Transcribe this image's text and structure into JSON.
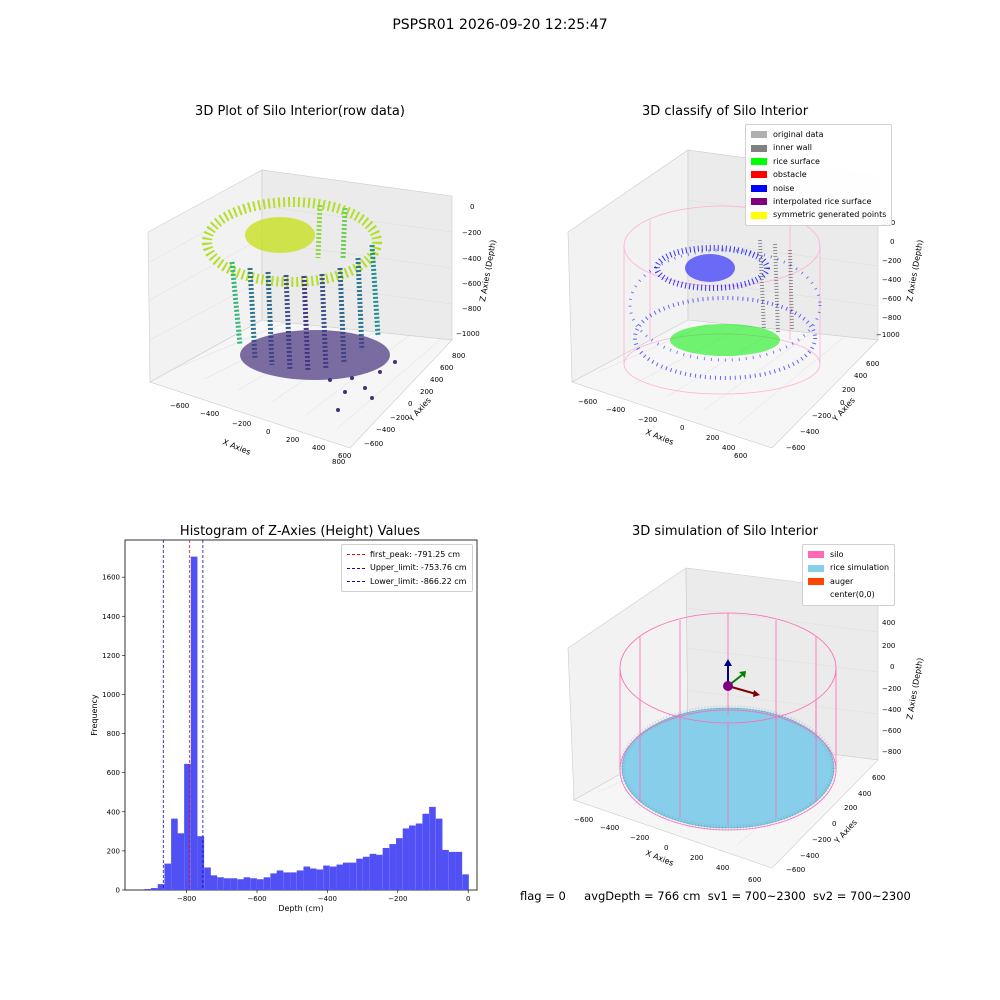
{
  "suptitle": "PSPSR01 2026-09-20 12:25:47",
  "colors": {
    "hist_bar": "#5050f5",
    "first_peak": "#e01010",
    "limits": "#1010a0",
    "silo_wire": "#ff69b4",
    "rice": "#87ceeb"
  },
  "panels": {
    "raw": {
      "title": "3D Plot of Silo Interior(row data)",
      "xlabel": "X Axies",
      "ylabel": "Y Axies",
      "zlabel": "Z Axies (Depth)",
      "xticks": [
        "−600",
        "−400",
        "−200",
        "0",
        "200",
        "400",
        "600",
        "800"
      ],
      "yticks": [
        "800",
        "600",
        "400",
        "200",
        "0",
        "−200",
        "−400",
        "−600"
      ],
      "zticks": [
        "0",
        "−200",
        "−400",
        "−600",
        "−800",
        "−1000"
      ],
      "colormap": "viridis"
    },
    "classify": {
      "title": "3D classify of Silo Interior",
      "xlabel": "X Axies",
      "ylabel": "Y Axies",
      "zlabel": "Z Axies (Depth)",
      "xticks": [
        "−600",
        "−400",
        "−200",
        "0",
        "200",
        "400",
        "600"
      ],
      "yticks": [
        "600",
        "400",
        "200",
        "0",
        "−200",
        "−400",
        "−600"
      ],
      "zticks": [
        "200",
        "0",
        "−200",
        "−400",
        "−600",
        "−800",
        "−1000"
      ],
      "legend": [
        {
          "label": "original data",
          "color": "#b0b0b0"
        },
        {
          "label": "inner wall",
          "color": "#808080"
        },
        {
          "label": "rice surface",
          "color": "#00ff00"
        },
        {
          "label": "obstacle",
          "color": "#ff0000"
        },
        {
          "label": "noise",
          "color": "#0000ff"
        },
        {
          "label": "interpolated rice surface",
          "color": "#800080"
        },
        {
          "label": "symmetric generated points",
          "color": "#ffff00"
        }
      ]
    },
    "simulation": {
      "title": "3D simulation of Silo Interior",
      "xlabel": "X Axies",
      "ylabel": "Y Axies",
      "zlabel": "Z Axies (Depth)",
      "xticks": [
        "−600",
        "−400",
        "−200",
        "0",
        "200",
        "400",
        "600"
      ],
      "yticks": [
        "600",
        "400",
        "200",
        "0",
        "−200",
        "−400",
        "−600"
      ],
      "zticks": [
        "400",
        "200",
        "0",
        "−200",
        "−400",
        "−600",
        "−800"
      ],
      "legend": [
        {
          "label": "silo",
          "color": "#ff69b4"
        },
        {
          "label": "rice simulation",
          "color": "#87ceeb"
        },
        {
          "label": "auger",
          "color": "#ff4500"
        },
        {
          "label": "center(0,0)",
          "color": "#ffffff"
        }
      ]
    }
  },
  "footer": {
    "flag": "flag = 0",
    "avg_depth": "avgDepth = 766 cm",
    "sv1": "sv1 = 700~2300",
    "sv2": "sv2 = 700~2300"
  },
  "chart_data": [
    {
      "type": "bar",
      "title": "Histogram of Z-Axies (Height) Values",
      "xlabel": "Depth (cm)",
      "ylabel": "Frequency",
      "xlim": [
        -975,
        25
      ],
      "ylim": [
        0,
        1790
      ],
      "xticks": [
        -800,
        -600,
        -400,
        -200,
        0
      ],
      "yticks": [
        0,
        200,
        400,
        600,
        800,
        1000,
        1200,
        1400,
        1600
      ],
      "bin_width": 18.8,
      "bins_start": [
        -920,
        -901,
        -882,
        -863,
        -844,
        -826,
        -807,
        -788,
        -769,
        -750,
        -732,
        -713,
        -694,
        -675,
        -656,
        -638,
        -619,
        -600,
        -581,
        -562,
        -544,
        -525,
        -506,
        -487,
        -468,
        -450,
        -431,
        -412,
        -393,
        -374,
        -356,
        -337,
        -318,
        -299,
        -280,
        -262,
        -243,
        -224,
        -205,
        -186,
        -168,
        -149,
        -130,
        -111,
        -92,
        -74,
        -55,
        -36,
        -17
      ],
      "values": [
        5,
        10,
        30,
        135,
        365,
        290,
        645,
        1705,
        275,
        115,
        75,
        65,
        60,
        60,
        55,
        65,
        60,
        55,
        65,
        85,
        100,
        90,
        90,
        100,
        120,
        110,
        105,
        125,
        120,
        130,
        140,
        140,
        160,
        170,
        185,
        180,
        215,
        235,
        265,
        315,
        330,
        340,
        390,
        425,
        365,
        205,
        195,
        195,
        80
      ],
      "vlines": [
        {
          "label": "first_peak: -791.25 cm",
          "x": -791.25,
          "color": "#e01010"
        },
        {
          "label": "Upper_limit: -753.76 cm",
          "x": -753.76,
          "color": "#1010a0"
        },
        {
          "label": "Lower_limit: -866.22 cm",
          "x": -866.22,
          "color": "#1010a0"
        }
      ],
      "legend_position": "upper right"
    }
  ]
}
